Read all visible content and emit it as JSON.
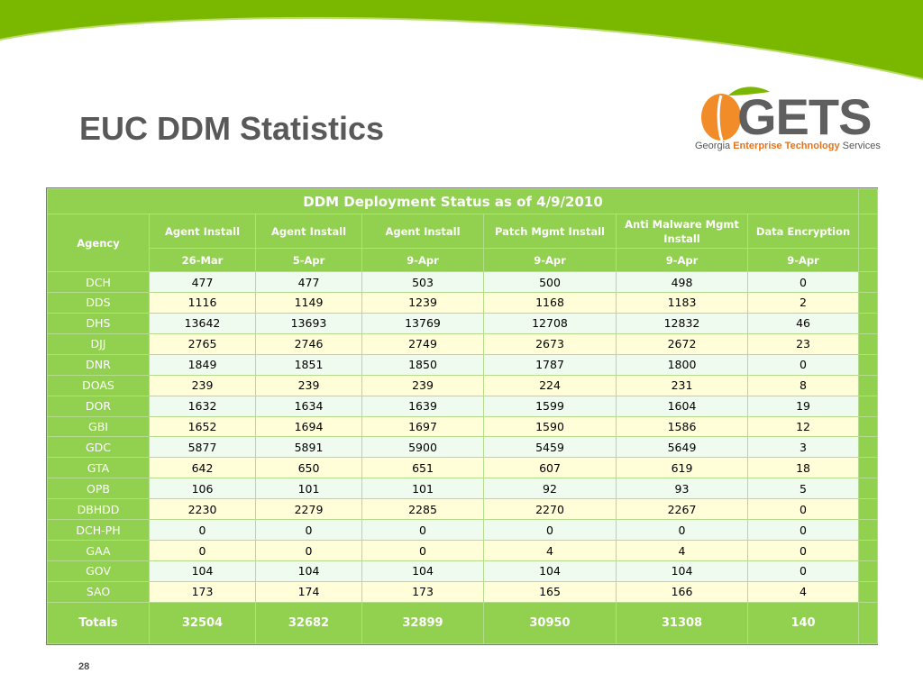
{
  "slide": {
    "title": "EUC DDM Statistics",
    "page_number": "28",
    "accent_color": "#92d050",
    "swoosh_color": "#7ab800"
  },
  "logo": {
    "name": "GETS",
    "subtitle_pre": "Georgia ",
    "subtitle_hl": "Enterprise Technology",
    "subtitle_post": " Services",
    "peach_color": "#f28c28",
    "text_color": "#5f5f5f"
  },
  "table": {
    "title": "DDM Deployment Status as of 4/9/2010",
    "agency_header": "Agency",
    "columns": [
      {
        "name": "Agent Install",
        "date": "26-Mar"
      },
      {
        "name": "Agent Install",
        "date": "5-Apr"
      },
      {
        "name": "Agent Install",
        "date": "9-Apr"
      },
      {
        "name": "Patch Mgmt Install",
        "date": "9-Apr"
      },
      {
        "name": "Anti Malware Mgmt Install",
        "date": "9-Apr"
      },
      {
        "name": "Data Encryption",
        "date": "9-Apr"
      }
    ],
    "rows": [
      {
        "agency": "DCH",
        "values": [
          "477",
          "477",
          "503",
          "500",
          "498",
          "0"
        ]
      },
      {
        "agency": "DDS",
        "values": [
          "1116",
          "1149",
          "1239",
          "1168",
          "1183",
          "2"
        ]
      },
      {
        "agency": "DHS",
        "values": [
          "13642",
          "13693",
          "13769",
          "12708",
          "12832",
          "46"
        ]
      },
      {
        "agency": "DJJ",
        "values": [
          "2765",
          "2746",
          "2749",
          "2673",
          "2672",
          "23"
        ]
      },
      {
        "agency": "DNR",
        "values": [
          "1849",
          "1851",
          "1850",
          "1787",
          "1800",
          "0"
        ]
      },
      {
        "agency": "DOAS",
        "values": [
          "239",
          "239",
          "239",
          "224",
          "231",
          "8"
        ]
      },
      {
        "agency": "DOR",
        "values": [
          "1632",
          "1634",
          "1639",
          "1599",
          "1604",
          "19"
        ]
      },
      {
        "agency": "GBI",
        "values": [
          "1652",
          "1694",
          "1697",
          "1590",
          "1586",
          "12"
        ]
      },
      {
        "agency": "GDC",
        "values": [
          "5877",
          "5891",
          "5900",
          "5459",
          "5649",
          "3"
        ]
      },
      {
        "agency": "GTA",
        "values": [
          "642",
          "650",
          "651",
          "607",
          "619",
          "18"
        ]
      },
      {
        "agency": "OPB",
        "values": [
          "106",
          "101",
          "101",
          "92",
          "93",
          "5"
        ]
      },
      {
        "agency": "DBHDD",
        "values": [
          "2230",
          "2279",
          "2285",
          "2270",
          "2267",
          "0"
        ]
      },
      {
        "agency": "DCH-PH",
        "values": [
          "0",
          "0",
          "0",
          "0",
          "0",
          "0"
        ]
      },
      {
        "agency": "GAA",
        "values": [
          "0",
          "0",
          "0",
          "4",
          "4",
          "0"
        ]
      },
      {
        "agency": "GOV",
        "values": [
          "104",
          "104",
          "104",
          "104",
          "104",
          "0"
        ]
      },
      {
        "agency": "SAO",
        "values": [
          "173",
          "174",
          "173",
          "165",
          "166",
          "4"
        ]
      }
    ],
    "totals": {
      "label": "Totals",
      "values": [
        "32504",
        "32682",
        "32899",
        "30950",
        "31308",
        "140"
      ]
    }
  }
}
